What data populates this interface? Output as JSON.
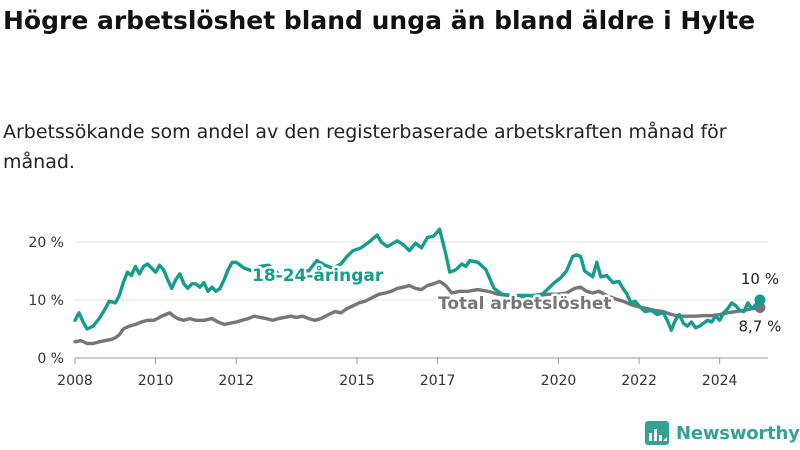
{
  "title": "Högre arbetslöshet bland unga än bland äldre i Hylte",
  "subtitle": "Arbetssökande som andel av den registerbaserade arbetskraften månad för månad.",
  "brand": {
    "name": "Newsworthy",
    "color": "#35a094"
  },
  "chart_data": {
    "type": "line",
    "title": "Högre arbetslöshet bland unga än bland äldre i Hylte",
    "xlabel": "",
    "ylabel": "",
    "xlim": [
      2008.0,
      2025.2
    ],
    "ylim": [
      0,
      20
    ],
    "y_ticks": [
      0,
      10,
      20
    ],
    "y_tick_labels": [
      "0 %",
      "10 %",
      "20 %"
    ],
    "x_ticks": [
      2008,
      2010,
      2012,
      2015,
      2017,
      2020,
      2022,
      2024
    ],
    "x_tick_labels": [
      "2008",
      "2010",
      "2012",
      "2015",
      "2017",
      "2020",
      "2022",
      "2024"
    ],
    "grid": true,
    "series": [
      {
        "name": "18-24-åringar",
        "color": "#169c8c",
        "end_label": "10 %",
        "points": [
          [
            2008.0,
            6.5
          ],
          [
            2008.1,
            7.8
          ],
          [
            2008.2,
            6.2
          ],
          [
            2008.3,
            5.0
          ],
          [
            2008.45,
            5.5
          ],
          [
            2008.6,
            6.8
          ],
          [
            2008.75,
            8.5
          ],
          [
            2008.85,
            9.8
          ],
          [
            2009.0,
            9.5
          ],
          [
            2009.1,
            10.8
          ],
          [
            2009.2,
            13.0
          ],
          [
            2009.3,
            14.8
          ],
          [
            2009.4,
            14.2
          ],
          [
            2009.5,
            15.8
          ],
          [
            2009.6,
            14.5
          ],
          [
            2009.7,
            15.8
          ],
          [
            2009.8,
            16.2
          ],
          [
            2009.9,
            15.5
          ],
          [
            2010.0,
            14.8
          ],
          [
            2010.1,
            16.0
          ],
          [
            2010.2,
            15.2
          ],
          [
            2010.3,
            13.5
          ],
          [
            2010.4,
            12.0
          ],
          [
            2010.5,
            13.5
          ],
          [
            2010.6,
            14.5
          ],
          [
            2010.7,
            12.8
          ],
          [
            2010.8,
            12.0
          ],
          [
            2010.9,
            12.8
          ],
          [
            2011.0,
            12.8
          ],
          [
            2011.1,
            12.2
          ],
          [
            2011.2,
            13.0
          ],
          [
            2011.3,
            11.5
          ],
          [
            2011.4,
            12.2
          ],
          [
            2011.5,
            11.5
          ],
          [
            2011.6,
            12.0
          ],
          [
            2011.7,
            13.5
          ],
          [
            2011.8,
            15.2
          ],
          [
            2011.9,
            16.5
          ],
          [
            2012.0,
            16.5
          ],
          [
            2012.2,
            15.5
          ],
          [
            2012.4,
            15.0
          ],
          [
            2012.6,
            15.8
          ],
          [
            2012.8,
            16.0
          ],
          [
            2013.0,
            14.8
          ],
          [
            2013.2,
            13.8
          ],
          [
            2013.4,
            14.5
          ],
          [
            2013.6,
            15.2
          ],
          [
            2013.8,
            15.0
          ],
          [
            2014.0,
            16.8
          ],
          [
            2014.2,
            16.0
          ],
          [
            2014.4,
            15.5
          ],
          [
            2014.6,
            16.2
          ],
          [
            2014.75,
            17.5
          ],
          [
            2014.9,
            18.5
          ],
          [
            2015.1,
            19.0
          ],
          [
            2015.3,
            20.0
          ],
          [
            2015.5,
            21.2
          ],
          [
            2015.6,
            20.0
          ],
          [
            2015.75,
            19.2
          ],
          [
            2015.9,
            19.8
          ],
          [
            2016.0,
            20.2
          ],
          [
            2016.15,
            19.5
          ],
          [
            2016.3,
            18.5
          ],
          [
            2016.45,
            19.8
          ],
          [
            2016.6,
            19.0
          ],
          [
            2016.75,
            20.8
          ],
          [
            2016.9,
            21.0
          ],
          [
            2017.05,
            22.2
          ],
          [
            2017.2,
            18.0
          ],
          [
            2017.3,
            14.8
          ],
          [
            2017.45,
            15.2
          ],
          [
            2017.6,
            16.2
          ],
          [
            2017.7,
            15.8
          ],
          [
            2017.8,
            16.8
          ],
          [
            2018.0,
            16.5
          ],
          [
            2018.2,
            15.2
          ],
          [
            2018.4,
            12.0
          ],
          [
            2018.6,
            11.0
          ],
          [
            2018.8,
            10.8
          ],
          [
            2019.0,
            10.8
          ],
          [
            2019.2,
            10.8
          ],
          [
            2019.4,
            10.8
          ],
          [
            2019.6,
            11.0
          ],
          [
            2019.75,
            12.0
          ],
          [
            2019.9,
            13.0
          ],
          [
            2020.05,
            13.8
          ],
          [
            2020.2,
            15.0
          ],
          [
            2020.35,
            17.5
          ],
          [
            2020.45,
            17.8
          ],
          [
            2020.55,
            17.5
          ],
          [
            2020.65,
            15.0
          ],
          [
            2020.75,
            14.5
          ],
          [
            2020.85,
            14.0
          ],
          [
            2020.95,
            16.5
          ],
          [
            2021.05,
            14.0
          ],
          [
            2021.2,
            14.2
          ],
          [
            2021.35,
            13.0
          ],
          [
            2021.5,
            13.2
          ],
          [
            2021.6,
            12.0
          ],
          [
            2021.7,
            11.0
          ],
          [
            2021.8,
            9.5
          ],
          [
            2021.9,
            9.8
          ],
          [
            2022.0,
            9.0
          ],
          [
            2022.15,
            8.0
          ],
          [
            2022.3,
            8.2
          ],
          [
            2022.45,
            7.5
          ],
          [
            2022.6,
            7.8
          ],
          [
            2022.7,
            6.5
          ],
          [
            2022.8,
            4.8
          ],
          [
            2022.9,
            6.5
          ],
          [
            2023.0,
            7.5
          ],
          [
            2023.1,
            6.0
          ],
          [
            2023.2,
            5.5
          ],
          [
            2023.3,
            6.2
          ],
          [
            2023.4,
            5.2
          ],
          [
            2023.5,
            5.5
          ],
          [
            2023.6,
            6.0
          ],
          [
            2023.7,
            6.5
          ],
          [
            2023.8,
            6.2
          ],
          [
            2023.9,
            7.2
          ],
          [
            2024.0,
            6.5
          ],
          [
            2024.1,
            7.8
          ],
          [
            2024.2,
            8.5
          ],
          [
            2024.3,
            9.5
          ],
          [
            2024.4,
            9.0
          ],
          [
            2024.5,
            8.2
          ],
          [
            2024.6,
            8.0
          ],
          [
            2024.7,
            9.5
          ],
          [
            2024.8,
            8.5
          ],
          [
            2024.9,
            9.2
          ],
          [
            2025.0,
            10.0
          ]
        ]
      },
      {
        "name": "Total arbetslöshet",
        "color": "#767678",
        "end_label": "8,7 %",
        "points": [
          [
            2008.0,
            2.8
          ],
          [
            2008.15,
            3.0
          ],
          [
            2008.3,
            2.5
          ],
          [
            2008.45,
            2.5
          ],
          [
            2008.6,
            2.8
          ],
          [
            2008.75,
            3.0
          ],
          [
            2008.9,
            3.2
          ],
          [
            2009.0,
            3.5
          ],
          [
            2009.1,
            4.0
          ],
          [
            2009.2,
            5.0
          ],
          [
            2009.35,
            5.5
          ],
          [
            2009.5,
            5.8
          ],
          [
            2009.65,
            6.2
          ],
          [
            2009.8,
            6.5
          ],
          [
            2009.95,
            6.5
          ],
          [
            2010.05,
            6.8
          ],
          [
            2010.15,
            7.2
          ],
          [
            2010.25,
            7.5
          ],
          [
            2010.35,
            7.8
          ],
          [
            2010.45,
            7.2
          ],
          [
            2010.55,
            6.8
          ],
          [
            2010.7,
            6.5
          ],
          [
            2010.85,
            6.8
          ],
          [
            2011.0,
            6.5
          ],
          [
            2011.2,
            6.5
          ],
          [
            2011.4,
            6.8
          ],
          [
            2011.55,
            6.2
          ],
          [
            2011.7,
            5.8
          ],
          [
            2011.85,
            6.0
          ],
          [
            2012.0,
            6.2
          ],
          [
            2012.15,
            6.5
          ],
          [
            2012.3,
            6.8
          ],
          [
            2012.45,
            7.2
          ],
          [
            2012.6,
            7.0
          ],
          [
            2012.75,
            6.8
          ],
          [
            2012.9,
            6.5
          ],
          [
            2013.05,
            6.8
          ],
          [
            2013.2,
            7.0
          ],
          [
            2013.35,
            7.2
          ],
          [
            2013.5,
            7.0
          ],
          [
            2013.65,
            7.2
          ],
          [
            2013.8,
            6.8
          ],
          [
            2013.95,
            6.5
          ],
          [
            2014.1,
            6.8
          ],
          [
            2014.3,
            7.5
          ],
          [
            2014.45,
            8.0
          ],
          [
            2014.6,
            7.8
          ],
          [
            2014.75,
            8.5
          ],
          [
            2014.9,
            9.0
          ],
          [
            2015.05,
            9.5
          ],
          [
            2015.2,
            9.8
          ],
          [
            2015.4,
            10.5
          ],
          [
            2015.55,
            11.0
          ],
          [
            2015.7,
            11.2
          ],
          [
            2015.85,
            11.5
          ],
          [
            2016.0,
            12.0
          ],
          [
            2016.15,
            12.2
          ],
          [
            2016.3,
            12.5
          ],
          [
            2016.45,
            12.0
          ],
          [
            2016.6,
            11.8
          ],
          [
            2016.75,
            12.5
          ],
          [
            2016.9,
            12.8
          ],
          [
            2017.05,
            13.2
          ],
          [
            2017.2,
            12.5
          ],
          [
            2017.35,
            11.2
          ],
          [
            2017.55,
            11.5
          ],
          [
            2017.75,
            11.5
          ],
          [
            2018.0,
            11.8
          ],
          [
            2018.25,
            11.5
          ],
          [
            2018.5,
            11.0
          ],
          [
            2018.75,
            10.8
          ],
          [
            2019.0,
            10.6
          ],
          [
            2019.25,
            10.6
          ],
          [
            2019.5,
            10.8
          ],
          [
            2019.75,
            11.0
          ],
          [
            2020.0,
            11.0
          ],
          [
            2020.2,
            11.2
          ],
          [
            2020.4,
            12.0
          ],
          [
            2020.55,
            12.2
          ],
          [
            2020.7,
            11.5
          ],
          [
            2020.85,
            11.2
          ],
          [
            2021.0,
            11.5
          ],
          [
            2021.2,
            10.8
          ],
          [
            2021.4,
            10.2
          ],
          [
            2021.6,
            9.8
          ],
          [
            2021.8,
            9.2
          ],
          [
            2022.0,
            8.8
          ],
          [
            2022.2,
            8.5
          ],
          [
            2022.4,
            8.2
          ],
          [
            2022.6,
            8.0
          ],
          [
            2022.8,
            7.5
          ],
          [
            2023.0,
            7.2
          ],
          [
            2023.2,
            7.2
          ],
          [
            2023.4,
            7.2
          ],
          [
            2023.6,
            7.3
          ],
          [
            2023.8,
            7.3
          ],
          [
            2024.0,
            7.5
          ],
          [
            2024.2,
            7.8
          ],
          [
            2024.4,
            8.0
          ],
          [
            2024.6,
            8.2
          ],
          [
            2024.8,
            8.5
          ],
          [
            2025.0,
            8.7
          ]
        ]
      }
    ],
    "legend": "inline labels on lines"
  }
}
